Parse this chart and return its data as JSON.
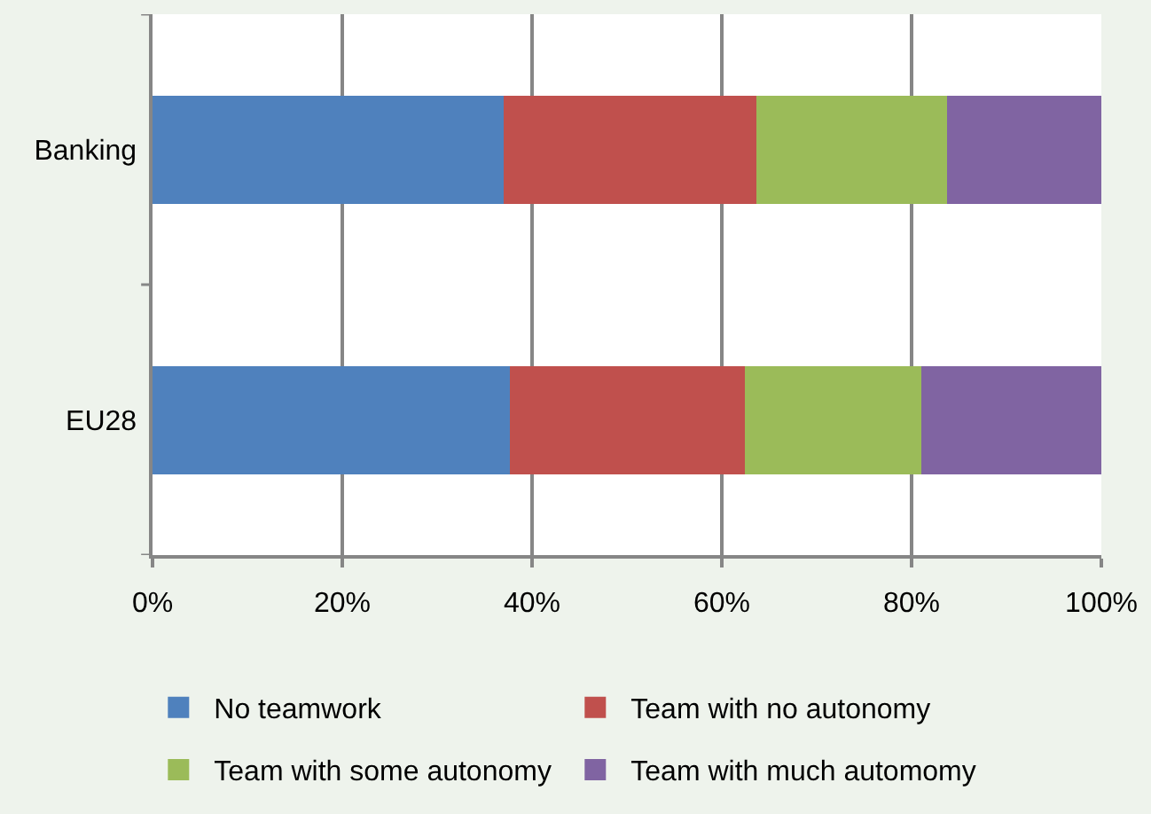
{
  "chart_data": {
    "type": "bar",
    "orientation": "horizontal",
    "stacked": true,
    "categories": [
      "Banking",
      "EU28"
    ],
    "series": [
      {
        "name": "No teamwork",
        "color": "#4f81bd",
        "values": [
          37.0,
          37.7
        ]
      },
      {
        "name": "Team with no autonomy",
        "color": "#c0504d",
        "values": [
          26.6,
          24.7
        ]
      },
      {
        "name": "Team with some autonomy",
        "color": "#9bbb59",
        "values": [
          20.1,
          18.6
        ]
      },
      {
        "name": "Team with much automomy",
        "color": "#8064a2",
        "values": [
          16.3,
          19.0
        ]
      }
    ],
    "xlim": [
      0,
      100
    ],
    "xticks": [
      {
        "value": 0,
        "label": "0%"
      },
      {
        "value": 20,
        "label": "20%"
      },
      {
        "value": 40,
        "label": "40%"
      },
      {
        "value": 60,
        "label": "60%"
      },
      {
        "value": 80,
        "label": "80%"
      },
      {
        "value": 100,
        "label": "100%"
      }
    ],
    "grid": "x",
    "legend": "bottom"
  }
}
